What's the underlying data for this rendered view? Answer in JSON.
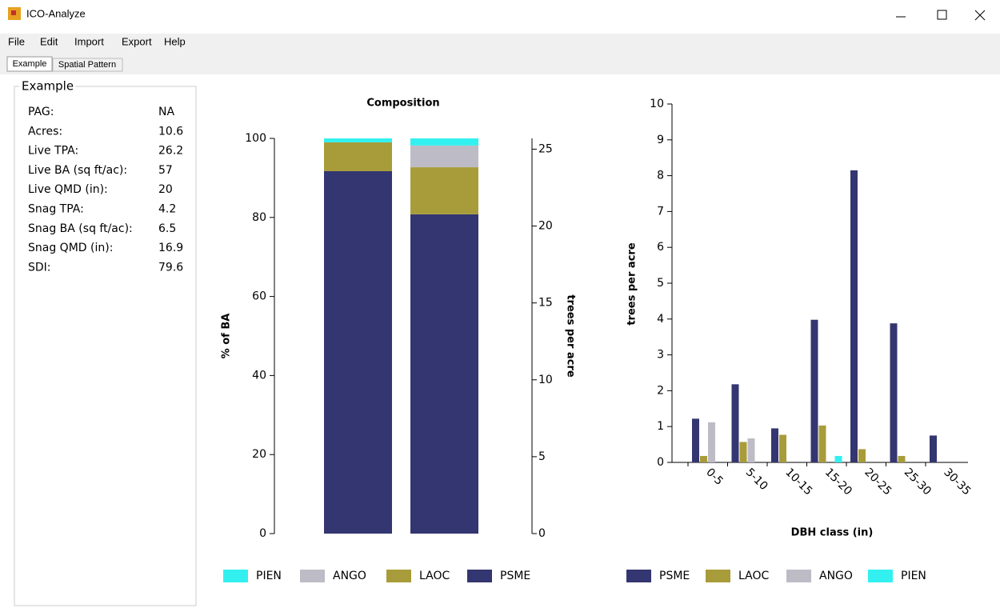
{
  "window": {
    "title": "ICO-Analyze"
  },
  "menu": [
    "File",
    "Edit",
    "Import",
    "Export",
    "Help"
  ],
  "tabs": [
    "Example",
    "Spatial Pattern"
  ],
  "panel": {
    "title": "Example",
    "rows": [
      [
        "PAG:",
        "NA"
      ],
      [
        "Acres:",
        "10.6"
      ],
      [
        "Live TPA:",
        "26.2"
      ],
      [
        "Live BA (sq ft/ac):",
        "57"
      ],
      [
        "Live QMD (in):",
        "20"
      ],
      [
        "Snag TPA:",
        "4.2"
      ],
      [
        "Snag BA (sq ft/ac):",
        "6.5"
      ],
      [
        "Snag QMD (in):",
        "16.9"
      ],
      [
        "SDI:",
        "79.6"
      ]
    ]
  },
  "chart_data": [
    {
      "type": "stacked_bar",
      "title": "Composition",
      "y_label": "% of BA",
      "y2_label": "trees per acre",
      "categories": [
        null,
        null
      ],
      "series": [
        {
          "name": "PIEN",
          "color": "#33f0f0",
          "values": [
            1.0,
            1.8
          ]
        },
        {
          "name": "ANGO",
          "color": "#bdbcc6",
          "values": [
            0,
            5.5
          ]
        },
        {
          "name": "LAOC",
          "color": "#a89c3a",
          "values": [
            7.3,
            11.9
          ]
        },
        {
          "name": "PSME",
          "color": "#333670",
          "values": [
            91.7,
            80.8
          ]
        }
      ],
      "ylim": [
        0,
        100
      ],
      "yticks": [
        0,
        20,
        40,
        60,
        80,
        100
      ],
      "y2lim": [
        0,
        25.7
      ],
      "y2ticks": [
        0,
        5,
        10,
        15,
        20,
        25
      ],
      "legend": "bottom"
    },
    {
      "type": "grouped_bar",
      "x_label": "DBH class (in)",
      "y_label": "trees per acre",
      "categories": [
        "0-5",
        "5-10",
        "10-15",
        "15-20",
        "20-25",
        "25-30",
        "30-35"
      ],
      "series": [
        {
          "name": "PSME",
          "color": "#333670",
          "values": [
            1.22,
            2.18,
            0.95,
            3.98,
            8.15,
            3.88,
            0.75
          ]
        },
        {
          "name": "LAOC",
          "color": "#a89c3a",
          "values": [
            0.18,
            0.57,
            0.77,
            1.03,
            0.37,
            0.18,
            0
          ]
        },
        {
          "name": "ANGO",
          "color": "#bdbcc6",
          "values": [
            1.12,
            0.67,
            0,
            0,
            0,
            0,
            0
          ]
        },
        {
          "name": "PIEN",
          "color": "#33f0f0",
          "values": [
            0,
            0,
            0,
            0.18,
            0,
            0,
            0
          ]
        }
      ],
      "ylim": [
        0,
        10
      ],
      "yticks": [
        0,
        1,
        2,
        3,
        4,
        5,
        6,
        7,
        8,
        9,
        10
      ],
      "legend": "bottom"
    }
  ]
}
